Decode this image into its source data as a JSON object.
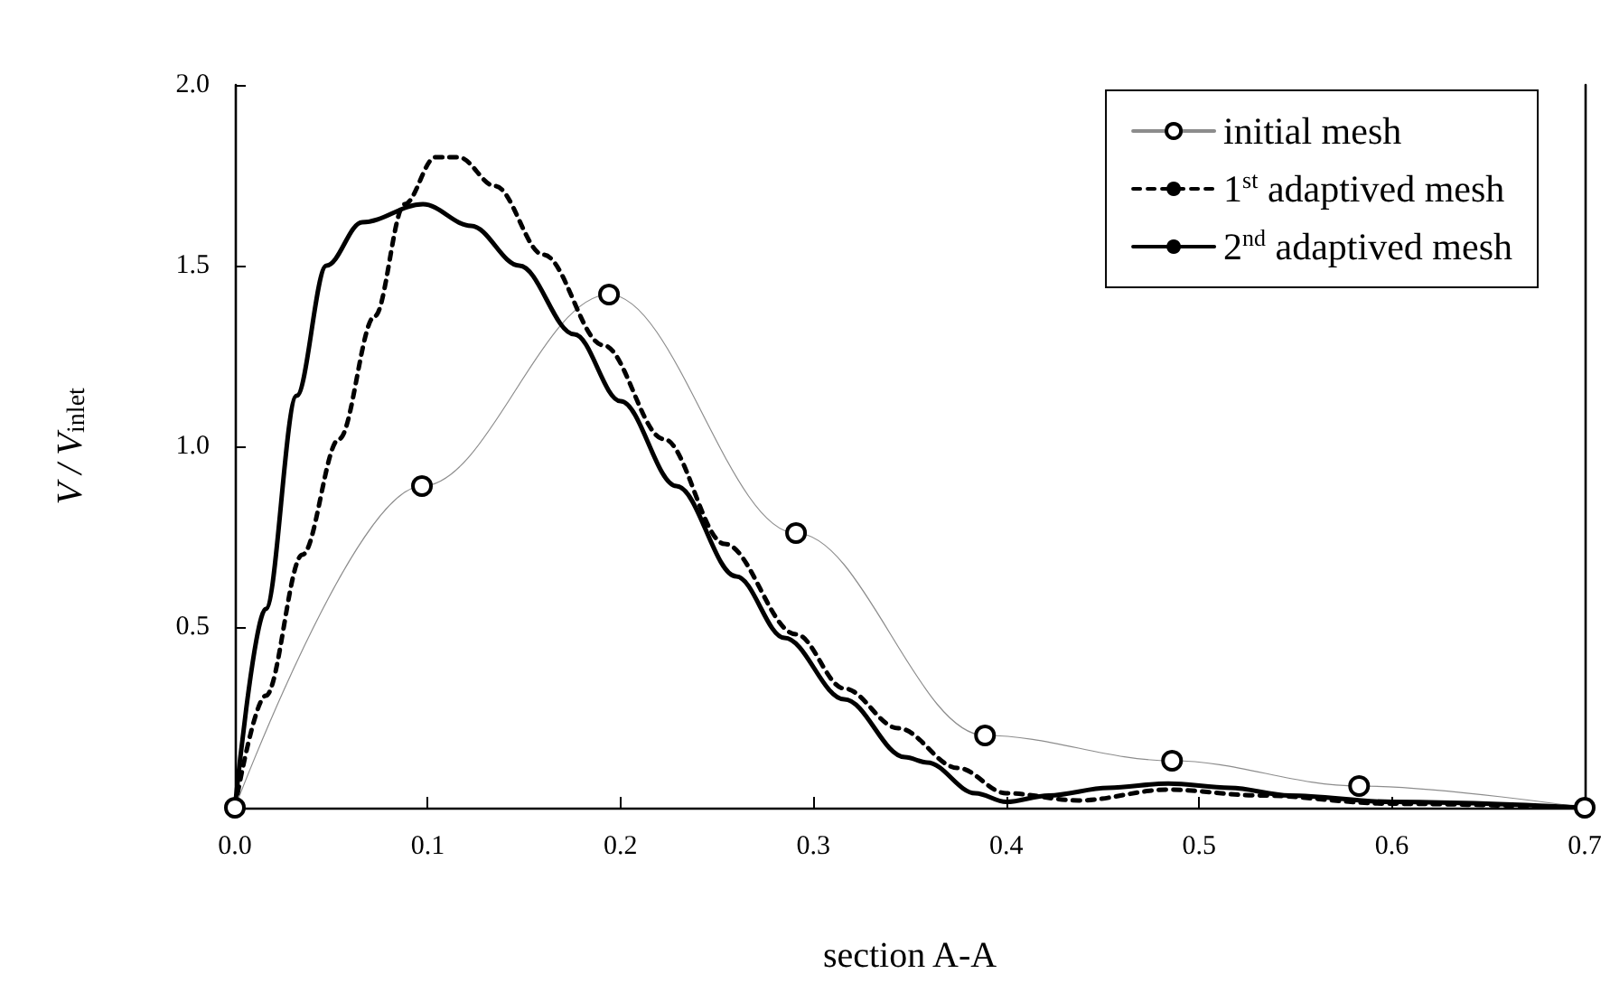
{
  "chart_data": {
    "type": "line",
    "xlabel": "section A-A",
    "ylabel": "V / V$_{inlet}$",
    "xlim": [
      0,
      0.7
    ],
    "xticks": [
      {
        "value": 0,
        "label": "0.0"
      },
      0.1,
      0.2,
      0.3,
      0.4,
      0.5,
      0.6,
      0.7
    ],
    "ylim": [
      0,
      2
    ],
    "yticks": [
      {
        "value": 0.5,
        "label": "0.5"
      },
      {
        "value": 1,
        "label": "1.0"
      },
      {
        "value": 1.5,
        "label": "1.5"
      },
      {
        "value": 2,
        "label": "2.0"
      }
    ],
    "grid": false,
    "legend": "top right",
    "series": [
      {
        "name": "initial mesh",
        "color": "#000000",
        "marker": "circle",
        "line_style": "solid",
        "x": [
          0,
          0.097,
          0.194,
          0.291,
          0.389,
          0.486,
          0.583,
          0.7
        ],
        "values": [
          0,
          0.89,
          1.42,
          0.76,
          0.2,
          0.13,
          0.06,
          0
        ]
      },
      {
        "name": "1$^{st}$ adaptived mesh",
        "color": "#000000",
        "marker": "none",
        "line_style": "dashed",
        "x": [
          0,
          0.016,
          0.035,
          0.054,
          0.0725,
          0.088,
          0.104,
          0.116,
          0.135,
          0.16,
          0.191,
          0.2225,
          0.254,
          0.291,
          0.316,
          0.344,
          0.375,
          0.4,
          0.4375,
          0.484,
          0.531,
          0.6,
          0.7
        ],
        "values": [
          0,
          0.31,
          0.7,
          1.02,
          1.36,
          1.67,
          1.8,
          1.8,
          1.72,
          1.53,
          1.28,
          1.02,
          0.73,
          0.48,
          0.33,
          0.22,
          0.11,
          0.04,
          0.02,
          0.05,
          0.034,
          0.011,
          0
        ]
      },
      {
        "name": "2$^{nd}$ adaptived mesh",
        "color": "#000000",
        "marker": "none",
        "line_style": "solid",
        "x": [
          0,
          0.016,
          0.032,
          0.0475,
          0.066,
          0.0975,
          0.1225,
          0.1475,
          0.176,
          0.2,
          0.229,
          0.26,
          0.285,
          0.316,
          0.3475,
          0.359,
          0.384,
          0.4,
          0.422,
          0.453,
          0.484,
          0.516,
          0.547,
          0.6,
          0.7
        ],
        "values": [
          0,
          0.55,
          1.14,
          1.5,
          1.62,
          1.67,
          1.61,
          1.5,
          1.31,
          1.125,
          0.89,
          0.64,
          0.47,
          0.3,
          0.14,
          0.125,
          0.04,
          0.016,
          0.034,
          0.055,
          0.067,
          0.055,
          0.034,
          0.016,
          0
        ]
      }
    ]
  }
}
